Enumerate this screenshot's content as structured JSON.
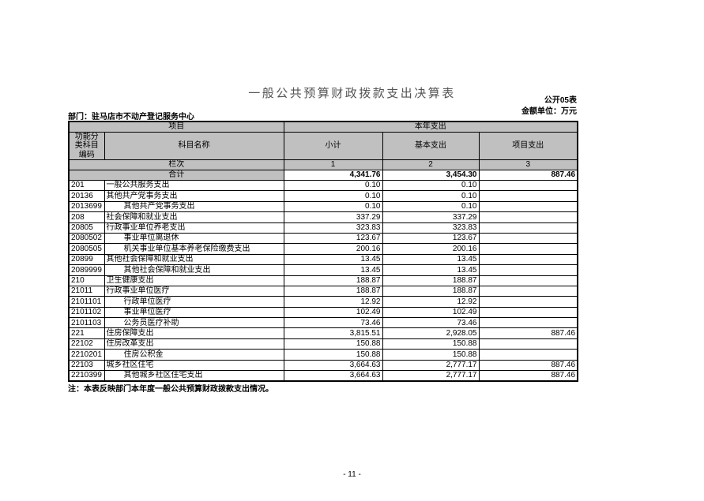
{
  "page": {
    "title": "一般公共预算财政拨款支出决算表",
    "table_code": "公开05表",
    "unit": "金额单位：万元",
    "department": "部门：驻马店市不动产登记服务中心",
    "note": "注：本表反映部门本年度一般公共预算财政拨款支出情况。",
    "page_number": "- 11 -"
  },
  "table": {
    "header": {
      "group_left": "项目",
      "group_right": "本年支出",
      "col_code": "功能分类科目编码",
      "col_name": "科目名称",
      "col_subtotal": "小计",
      "col_basic": "基本支出",
      "col_project": "项目支出",
      "lanci_label": "栏次",
      "lanci": [
        "1",
        "2",
        "3"
      ],
      "total_label": "合计"
    },
    "total_row": {
      "subtotal": "4,341.76",
      "basic": "3,454.30",
      "project": "887.46"
    },
    "rows": [
      {
        "code": "201",
        "name": "一般公共服务支出",
        "indent": false,
        "subtotal": "0.10",
        "basic": "0.10",
        "project": ""
      },
      {
        "code": "20136",
        "name": "其他共产党事务支出",
        "indent": false,
        "subtotal": "0.10",
        "basic": "0.10",
        "project": ""
      },
      {
        "code": "2013699",
        "name": "其他共产党事务支出",
        "indent": true,
        "subtotal": "0.10",
        "basic": "0.10",
        "project": ""
      },
      {
        "code": "208",
        "name": "社会保障和就业支出",
        "indent": false,
        "subtotal": "337.29",
        "basic": "337.29",
        "project": ""
      },
      {
        "code": "20805",
        "name": "行政事业单位养老支出",
        "indent": false,
        "subtotal": "323.83",
        "basic": "323.83",
        "project": ""
      },
      {
        "code": "2080502",
        "name": "事业单位离退休",
        "indent": true,
        "subtotal": "123.67",
        "basic": "123.67",
        "project": ""
      },
      {
        "code": "2080505",
        "name": "机关事业单位基本养老保险缴费支出",
        "indent": true,
        "subtotal": "200.16",
        "basic": "200.16",
        "project": ""
      },
      {
        "code": "20899",
        "name": "其他社会保障和就业支出",
        "indent": false,
        "subtotal": "13.45",
        "basic": "13.45",
        "project": ""
      },
      {
        "code": "2089999",
        "name": "其他社会保障和就业支出",
        "indent": true,
        "subtotal": "13.45",
        "basic": "13.45",
        "project": ""
      },
      {
        "code": "210",
        "name": "卫生健康支出",
        "indent": false,
        "subtotal": "188.87",
        "basic": "188.87",
        "project": ""
      },
      {
        "code": "21011",
        "name": "行政事业单位医疗",
        "indent": false,
        "subtotal": "188.87",
        "basic": "188.87",
        "project": ""
      },
      {
        "code": "2101101",
        "name": "行政单位医疗",
        "indent": true,
        "subtotal": "12.92",
        "basic": "12.92",
        "project": ""
      },
      {
        "code": "2101102",
        "name": "事业单位医疗",
        "indent": true,
        "subtotal": "102.49",
        "basic": "102.49",
        "project": ""
      },
      {
        "code": "2101103",
        "name": "公务员医疗补助",
        "indent": true,
        "subtotal": "73.46",
        "basic": "73.46",
        "project": ""
      },
      {
        "code": "221",
        "name": "住房保障支出",
        "indent": false,
        "subtotal": "3,815.51",
        "basic": "2,928.05",
        "project": "887.46"
      },
      {
        "code": "22102",
        "name": "住房改革支出",
        "indent": false,
        "subtotal": "150.88",
        "basic": "150.88",
        "project": ""
      },
      {
        "code": "2210201",
        "name": "住房公积金",
        "indent": true,
        "subtotal": "150.88",
        "basic": "150.88",
        "project": ""
      },
      {
        "code": "22103",
        "name": "城乡社区住宅",
        "indent": false,
        "subtotal": "3,664.63",
        "basic": "2,777.17",
        "project": "887.46"
      },
      {
        "code": "2210399",
        "name": "其他城乡社区住宅支出",
        "indent": true,
        "subtotal": "3,664.63",
        "basic": "2,777.17",
        "project": "887.46"
      }
    ]
  },
  "colors": {
    "page_bg": "#ffffff",
    "header_bg": "#c0c0c0",
    "grid": "#000000",
    "title_color": "#555555"
  }
}
